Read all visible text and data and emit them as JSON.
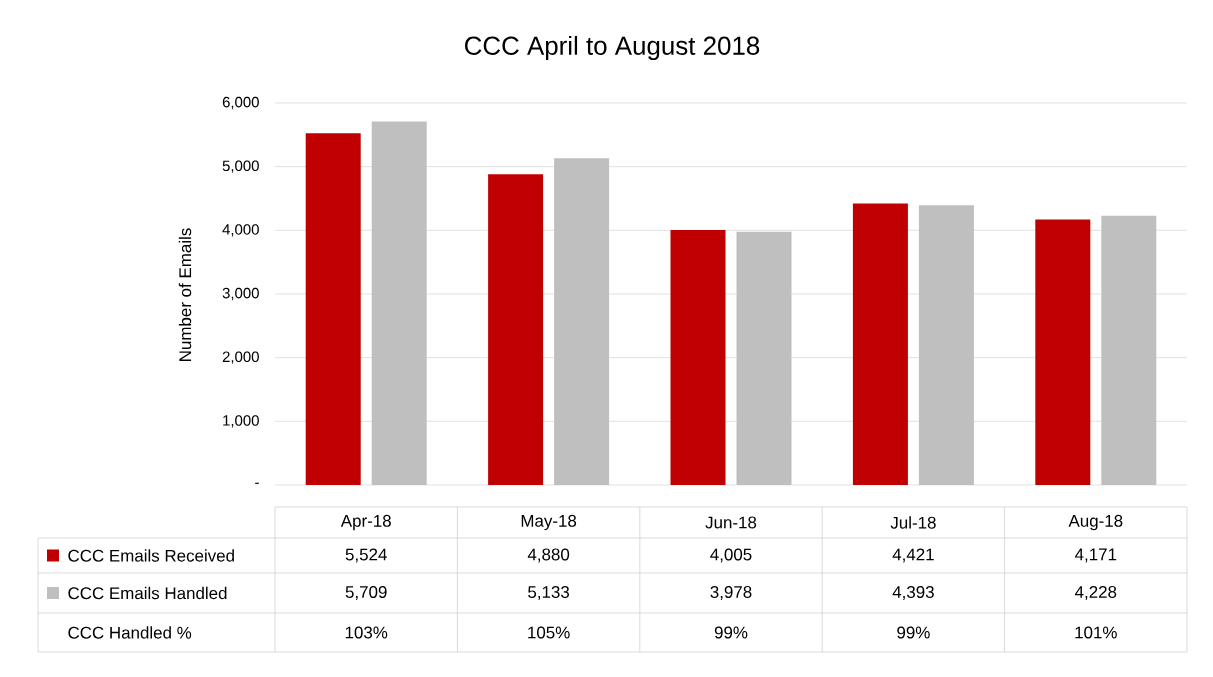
{
  "chart_data": {
    "type": "bar",
    "title": "CCC April to August 2018",
    "ylabel": "Number of Emails",
    "categories": [
      "Apr-18",
      "May-18",
      "Jun-18",
      "Jul-18",
      "Aug-18"
    ],
    "series": [
      {
        "name": "CCC Emails Received",
        "color": "#c00000",
        "values": [
          5524,
          4880,
          4005,
          4421,
          4171
        ],
        "value_labels": [
          "5,524",
          "4,880",
          "4,005",
          "4,421",
          "4,171"
        ]
      },
      {
        "name": "CCC Emails Handled",
        "color": "#bfbfbf",
        "values": [
          5709,
          5133,
          3978,
          4393,
          4228
        ],
        "value_labels": [
          "5,709",
          "5,133",
          "3,978",
          "4,393",
          "4,228"
        ]
      }
    ],
    "ylim": [
      0,
      6000
    ],
    "yticks": [
      {
        "value": 0,
        "label": "-"
      },
      {
        "value": 1000,
        "label": "1,000"
      },
      {
        "value": 2000,
        "label": "2,000"
      },
      {
        "value": 3000,
        "label": "3,000"
      },
      {
        "value": 4000,
        "label": "4,000"
      },
      {
        "value": 5000,
        "label": "5,000"
      },
      {
        "value": 6000,
        "label": "6,000"
      }
    ],
    "grid": "y",
    "legend": "bottom",
    "annotations": [
      "CCC Handled %",
      "103%",
      "105%",
      "99%",
      "99%",
      "101%"
    ]
  }
}
